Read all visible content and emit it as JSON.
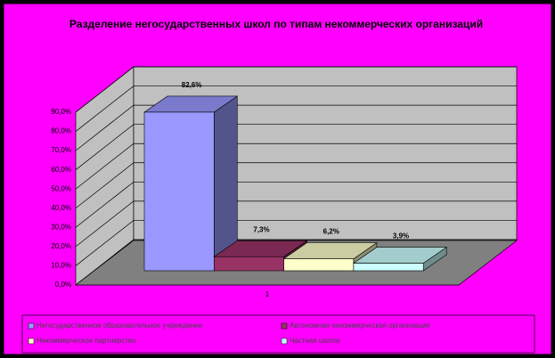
{
  "chart_data": {
    "type": "bar3d",
    "title": "Разделение негосударственных школ по типам некоммерческих организаций",
    "categories": [
      "1"
    ],
    "series": [
      {
        "name": "Негосударственное образовательное учреждение",
        "color": "#9999ff",
        "values": [
          82.6
        ],
        "value_labels": [
          "82,6%"
        ]
      },
      {
        "name": "Автономная некоммерческая организация",
        "color": "#993366",
        "values": [
          7.3
        ],
        "value_labels": [
          "7,3%"
        ]
      },
      {
        "name": "Некоммерческое партнерство",
        "color": "#ffffcc",
        "values": [
          6.2
        ],
        "value_labels": [
          "6,2%"
        ]
      },
      {
        "name": "Частная школа",
        "color": "#ccffff",
        "values": [
          3.9
        ],
        "value_labels": [
          "3,9%"
        ]
      }
    ],
    "ylim": [
      0,
      90
    ],
    "yticks": [
      {
        "value": 0,
        "label": "0,0%"
      },
      {
        "value": 10,
        "label": "10,0%"
      },
      {
        "value": 20,
        "label": "20,0%"
      },
      {
        "value": 30,
        "label": "30,0%"
      },
      {
        "value": 40,
        "label": "40,0%"
      },
      {
        "value": 50,
        "label": "50,0%"
      },
      {
        "value": 60,
        "label": "60,0%"
      },
      {
        "value": 70,
        "label": "70,0%"
      },
      {
        "value": 80,
        "label": "80,0%"
      },
      {
        "value": 90,
        "label": "90,0%"
      }
    ],
    "grid": true
  }
}
